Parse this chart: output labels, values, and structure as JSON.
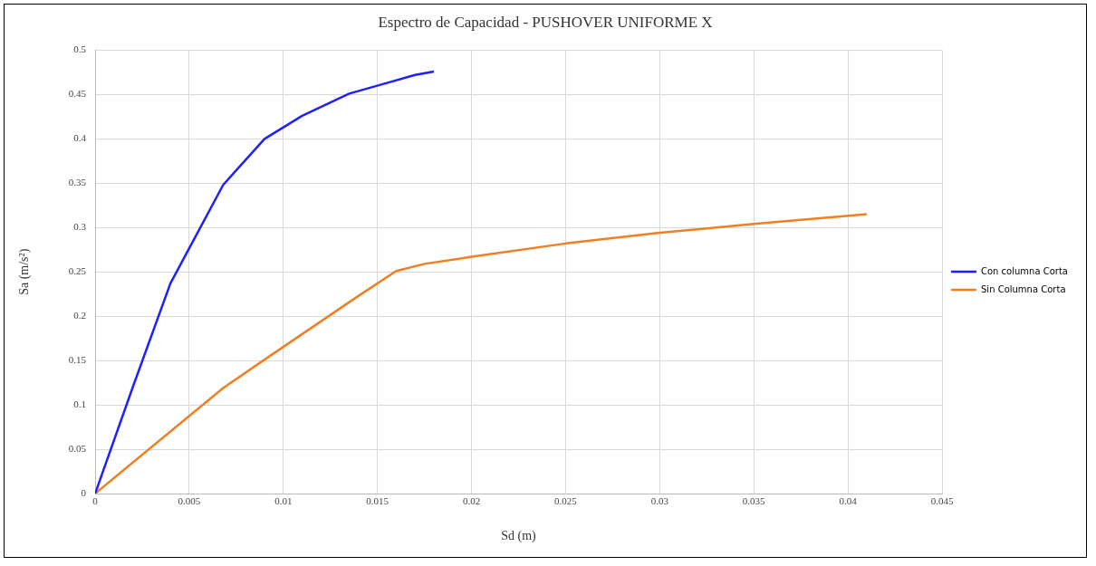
{
  "chart_data": {
    "type": "line",
    "title": "Espectro de Capacidad - PUSHOVER UNIFORME X",
    "xlabel": "Sd (m)",
    "ylabel": "Sa (m/s²)",
    "series": [
      {
        "name": "Con columna Corta",
        "color": "#1f1fff",
        "x": [
          0,
          0.002,
          0.004,
          0.0068,
          0.009,
          0.011,
          0.0135,
          0.0155,
          0.017,
          0.018
        ],
        "values": [
          0,
          0.12,
          0.237,
          0.348,
          0.4,
          0.426,
          0.451,
          0.463,
          0.472,
          0.476
        ]
      },
      {
        "name": "Sin Columna Corta",
        "color": "#f07f24",
        "x": [
          0,
          0.0068,
          0.009,
          0.014,
          0.016,
          0.0175,
          0.02,
          0.025,
          0.03,
          0.035,
          0.041
        ],
        "values": [
          0,
          0.119,
          0.151,
          0.223,
          0.251,
          0.259,
          0.267,
          0.282,
          0.294,
          0.304,
          0.315
        ]
      }
    ],
    "xlim": [
      0,
      0.045
    ],
    "xticks": [
      0,
      0.005,
      0.01,
      0.015,
      0.02,
      0.025,
      0.03,
      0.035,
      0.04,
      0.045
    ],
    "ylim": [
      0,
      0.5
    ],
    "yticks": [
      0,
      0.05,
      0.1,
      0.15,
      0.2,
      0.25,
      0.3,
      0.35,
      0.4,
      0.45,
      0.5
    ],
    "grid": true,
    "legend": "right",
    "marker": "none",
    "line_style": "solid"
  }
}
